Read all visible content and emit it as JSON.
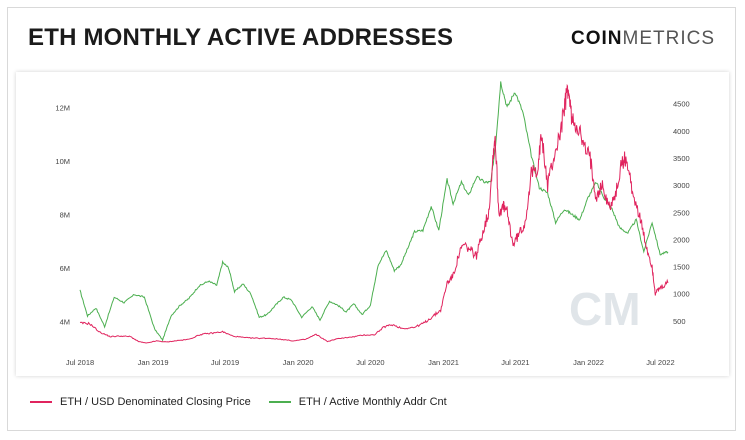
{
  "header": {
    "title": "ETH MONTHLY ACTIVE ADDRESSES",
    "brand_bold": "COIN",
    "brand_light": "METRICS"
  },
  "watermark": "CM",
  "colors": {
    "price": "#e0245e",
    "addr": "#4caf50"
  },
  "legend": [
    {
      "label": "ETH / USD Denominated Closing Price",
      "color": "#e0245e"
    },
    {
      "label": "ETH / Active Monthly Addr Cnt",
      "color": "#4caf50"
    }
  ],
  "chart_data": {
    "type": "line",
    "title": "ETH MONTHLY ACTIVE ADDRESSES",
    "x_tick_labels": [
      "Jul 2018",
      "Jan 2019",
      "Jul 2019",
      "Jan 2020",
      "Jul 2020",
      "Jan 2021",
      "Jul 2021",
      "Jan 2022",
      "Jul 2022"
    ],
    "x_tick_dates": [
      "2018-07-01",
      "2019-01-01",
      "2019-07-01",
      "2020-01-01",
      "2020-07-01",
      "2021-01-01",
      "2021-07-01",
      "2022-01-01",
      "2022-07-01"
    ],
    "x_range": [
      "2018-07-01",
      "2022-07-20"
    ],
    "y_left": {
      "label": "ETH / Active Monthly Addr Cnt",
      "ticks": [
        "4M",
        "6M",
        "8M",
        "10M",
        "12M"
      ],
      "tick_values": [
        4000000,
        6000000,
        8000000,
        10000000,
        12000000
      ],
      "range": [
        3000000,
        12950000
      ]
    },
    "y_right": {
      "label": "ETH / USD Denominated Closing Price",
      "ticks": [
        "500",
        "1000",
        "1500",
        "2000",
        "2500",
        "3000",
        "3500",
        "4000",
        "4500"
      ],
      "tick_values": [
        500,
        1000,
        1500,
        2000,
        2500,
        3000,
        3500,
        4000,
        4500
      ],
      "range": [
        0,
        4900
      ]
    },
    "series": [
      {
        "name": "ETH / Active Monthly Addr Cnt",
        "axis": "left",
        "x": [
          "2018-07-01",
          "2018-07-20",
          "2018-08-10",
          "2018-09-01",
          "2018-09-25",
          "2018-10-20",
          "2018-11-15",
          "2018-12-10",
          "2019-01-05",
          "2019-01-25",
          "2019-02-15",
          "2019-03-10",
          "2019-04-01",
          "2019-04-25",
          "2019-05-20",
          "2019-06-10",
          "2019-06-25",
          "2019-07-10",
          "2019-07-25",
          "2019-08-15",
          "2019-09-05",
          "2019-09-25",
          "2019-10-15",
          "2019-11-05",
          "2019-11-25",
          "2019-12-15",
          "2020-01-10",
          "2020-02-05",
          "2020-02-25",
          "2020-03-20",
          "2020-04-10",
          "2020-05-01",
          "2020-05-20",
          "2020-06-10",
          "2020-07-01",
          "2020-07-20",
          "2020-08-10",
          "2020-08-30",
          "2020-09-15",
          "2020-10-05",
          "2020-10-20",
          "2020-11-10",
          "2020-12-01",
          "2020-12-20",
          "2021-01-10",
          "2021-01-25",
          "2021-02-15",
          "2021-03-05",
          "2021-03-25",
          "2021-04-15",
          "2021-04-30",
          "2021-05-12",
          "2021-05-25",
          "2021-06-10",
          "2021-06-30",
          "2021-07-20",
          "2021-08-10",
          "2021-08-30",
          "2021-09-20",
          "2021-10-10",
          "2021-11-01",
          "2021-11-20",
          "2021-12-10",
          "2021-12-30",
          "2022-01-20",
          "2022-02-10",
          "2022-03-01",
          "2022-03-20",
          "2022-04-10",
          "2022-05-01",
          "2022-05-20",
          "2022-06-10",
          "2022-06-30",
          "2022-07-20"
        ],
        "values": [
          5150000,
          4200000,
          4500000,
          3800000,
          4900000,
          4700000,
          5000000,
          4900000,
          3700000,
          3300000,
          4200000,
          4600000,
          4850000,
          5300000,
          5500000,
          5350000,
          6200000,
          6000000,
          5100000,
          5400000,
          5000000,
          4150000,
          4250000,
          4600000,
          4900000,
          4800000,
          4150000,
          4550000,
          4050000,
          4750000,
          4600000,
          4350000,
          4650000,
          4250000,
          4600000,
          6100000,
          6650000,
          5900000,
          6100000,
          6800000,
          7350000,
          7400000,
          8300000,
          7400000,
          9300000,
          8400000,
          9200000,
          8700000,
          9400000,
          9200000,
          9200000,
          10600000,
          12950000,
          12000000,
          12600000,
          11800000,
          10200000,
          9000000,
          8800000,
          7700000,
          8200000,
          8000000,
          7800000,
          8600000,
          9200000,
          8600000,
          8200000,
          7500000,
          7300000,
          7800000,
          6600000,
          7700000,
          6500000,
          6600000
        ]
      },
      {
        "name": "ETH / USD Denominated Closing Price",
        "axis": "right",
        "x": [
          "2018-07-01",
          "2018-07-25",
          "2018-08-20",
          "2018-09-15",
          "2018-10-10",
          "2018-11-05",
          "2018-11-25",
          "2018-12-15",
          "2019-01-10",
          "2019-02-05",
          "2019-03-01",
          "2019-04-01",
          "2019-05-01",
          "2019-05-25",
          "2019-06-25",
          "2019-07-20",
          "2019-08-20",
          "2019-09-20",
          "2019-10-20",
          "2019-11-20",
          "2019-12-20",
          "2020-01-20",
          "2020-02-15",
          "2020-03-15",
          "2020-04-15",
          "2020-05-15",
          "2020-06-15",
          "2020-07-10",
          "2020-08-05",
          "2020-08-25",
          "2020-09-20",
          "2020-10-20",
          "2020-11-15",
          "2020-12-05",
          "2020-12-25",
          "2021-01-10",
          "2021-01-25",
          "2021-02-10",
          "2021-02-20",
          "2021-03-10",
          "2021-03-25",
          "2021-04-10",
          "2021-04-25",
          "2021-05-05",
          "2021-05-11",
          "2021-05-20",
          "2021-06-01",
          "2021-06-10",
          "2021-06-25",
          "2021-07-10",
          "2021-07-25",
          "2021-08-10",
          "2021-08-25",
          "2021-09-05",
          "2021-09-20",
          "2021-10-05",
          "2021-10-20",
          "2021-11-01",
          "2021-11-10",
          "2021-11-20",
          "2021-12-05",
          "2021-12-20",
          "2022-01-05",
          "2022-01-20",
          "2022-02-05",
          "2022-02-20",
          "2022-03-10",
          "2022-03-25",
          "2022-04-05",
          "2022-04-20",
          "2022-05-10",
          "2022-05-25",
          "2022-06-10",
          "2022-06-18",
          "2022-07-01",
          "2022-07-20"
        ],
        "values": [
          460,
          450,
          290,
          210,
          220,
          210,
          120,
          90,
          130,
          110,
          135,
          160,
          250,
          270,
          300,
          220,
          190,
          180,
          180,
          160,
          130,
          160,
          250,
          120,
          180,
          200,
          240,
          240,
          390,
          430,
          360,
          380,
          470,
          580,
          700,
          1200,
          1330,
          1750,
          1900,
          1800,
          1700,
          2150,
          2500,
          3500,
          3900,
          2500,
          2600,
          2500,
          1900,
          2100,
          2300,
          3200,
          3300,
          3900,
          3000,
          3500,
          3900,
          4400,
          4800,
          4200,
          4100,
          3700,
          3500,
          2800,
          3000,
          2600,
          2800,
          3400,
          3500,
          2950,
          2400,
          1900,
          1500,
          1000,
          1100,
          1200
        ]
      }
    ]
  }
}
